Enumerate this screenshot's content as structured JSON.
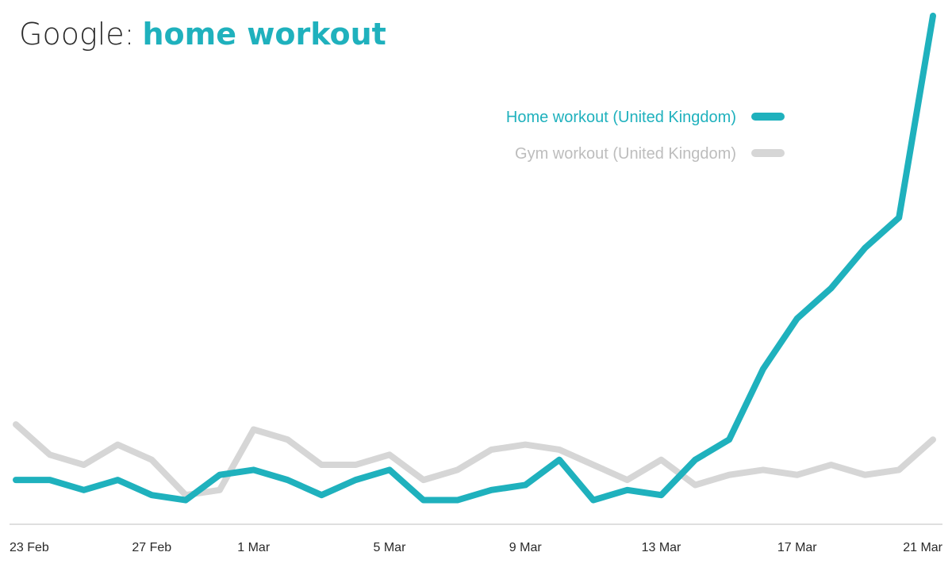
{
  "title": {
    "prefix": "Google:",
    "query": "home workout"
  },
  "colors": {
    "home": "#1fb1bd",
    "gym": "#d6d6d6",
    "axis": "#bfbfbf",
    "text": "#2a2a2a"
  },
  "chart_data": {
    "type": "line",
    "title": "Google: home workout",
    "x": [
      "23 Feb",
      "24 Feb",
      "25 Feb",
      "26 Feb",
      "27 Feb",
      "28 Feb",
      "29 Feb",
      "1 Mar",
      "2 Mar",
      "3 Mar",
      "4 Mar",
      "5 Mar",
      "6 Mar",
      "7 Mar",
      "8 Mar",
      "9 Mar",
      "10 Mar",
      "11 Mar",
      "12 Mar",
      "13 Mar",
      "14 Mar",
      "15 Mar",
      "16 Mar",
      "17 Mar",
      "18 Mar",
      "19 Mar",
      "20 Mar",
      "21 Mar"
    ],
    "x_tick_labels": [
      "23 Feb",
      "27 Feb",
      "1 Mar",
      "5 Mar",
      "9 Mar",
      "13 Mar",
      "17 Mar",
      "21 Mar"
    ],
    "xlabel": "",
    "ylabel": "",
    "ylim": [
      0,
      100
    ],
    "grid": false,
    "legend_position": "top-right",
    "series": [
      {
        "name": "Home workout (United Kingdom)",
        "color": "#1fb1bd",
        "values": [
          8,
          8,
          6,
          8,
          5,
          4,
          9,
          10,
          8,
          5,
          8,
          10,
          4,
          4,
          6,
          7,
          12,
          4,
          6,
          5,
          12,
          16,
          30,
          40,
          46,
          54,
          60,
          100
        ]
      },
      {
        "name": "Gym workout (United Kingdom)",
        "color": "#d6d6d6",
        "values": [
          19,
          13,
          11,
          15,
          12,
          5,
          6,
          18,
          16,
          11,
          11,
          13,
          8,
          10,
          14,
          15,
          14,
          11,
          8,
          12,
          7,
          9,
          10,
          9,
          11,
          9,
          10,
          16
        ]
      }
    ]
  }
}
